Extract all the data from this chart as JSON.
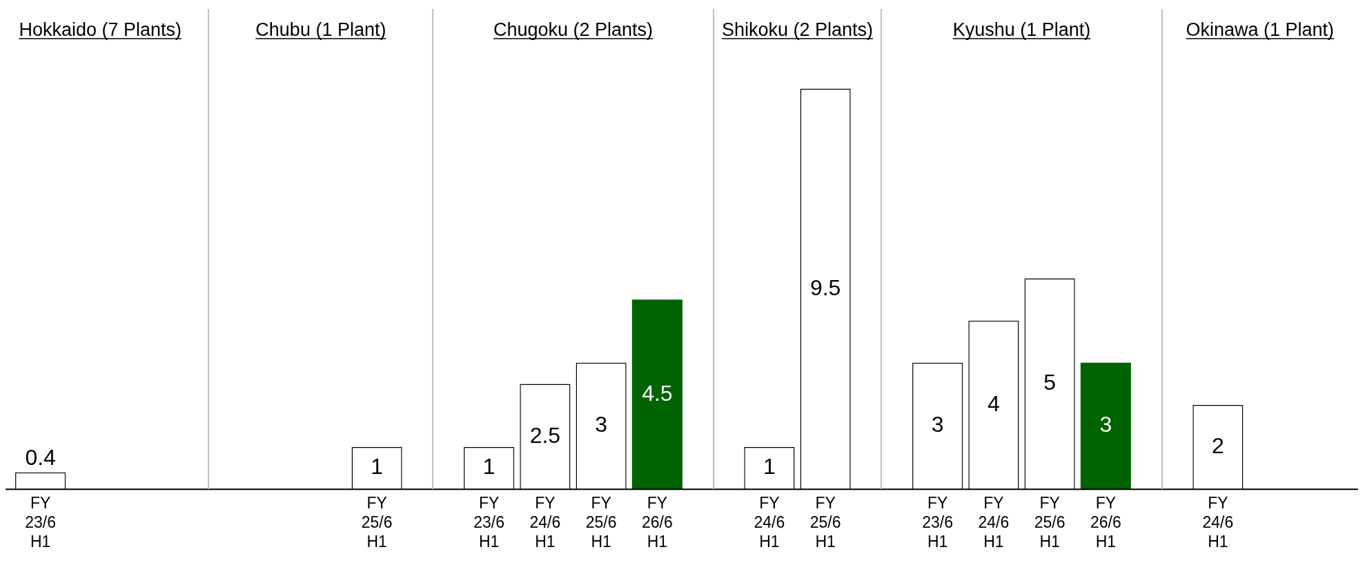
{
  "chart_data": {
    "type": "bar",
    "categories": [
      "FY 23/6 H1",
      null,
      null,
      null,
      null,
      null,
      "FY 25/6 H1",
      null,
      "FY 23/6 H1",
      "FY 24/6 H1",
      "FY 25/6 H1",
      "FY 26/6 H1",
      null,
      "FY 24/6 H1",
      "FY 25/6 H1",
      null,
      "FY 23/6 H1",
      "FY 24/6 H1",
      "FY 25/6 H1",
      "FY 26/6 H1",
      null,
      "FY 24/6 H1",
      null,
      null
    ],
    "values": [
      0.4,
      null,
      null,
      null,
      null,
      null,
      1,
      null,
      1,
      2.5,
      3,
      4.5,
      null,
      1,
      9.5,
      null,
      3,
      4,
      5,
      3,
      null,
      2,
      null,
      null
    ],
    "colors": [
      "#ffffff",
      "#ffffff",
      "#ffffff",
      "#ffffff",
      "#ffffff",
      "#ffffff",
      "#ffffff",
      "#ffffff",
      "#ffffff",
      "#ffffff",
      "#ffffff",
      "#006400",
      "#ffffff",
      "#ffffff",
      "#ffffff",
      "#ffffff",
      "#ffffff",
      "#ffffff",
      "#ffffff",
      "#006400",
      "#ffffff",
      "#ffffff",
      "#ffffff",
      "#ffffff"
    ],
    "tick_labels": "x",
    "grid": false,
    "legend": false,
    "data_labels": true,
    "annotations": [
      "Hokkaido (7 Plants)",
      "Chubu (1 Plant)",
      "Chugoku (2 Plants)",
      "Shikoku (2 Plants)",
      "Kyushu (1 Plant)",
      "Okinawa (1 Plant)"
    ]
  }
}
